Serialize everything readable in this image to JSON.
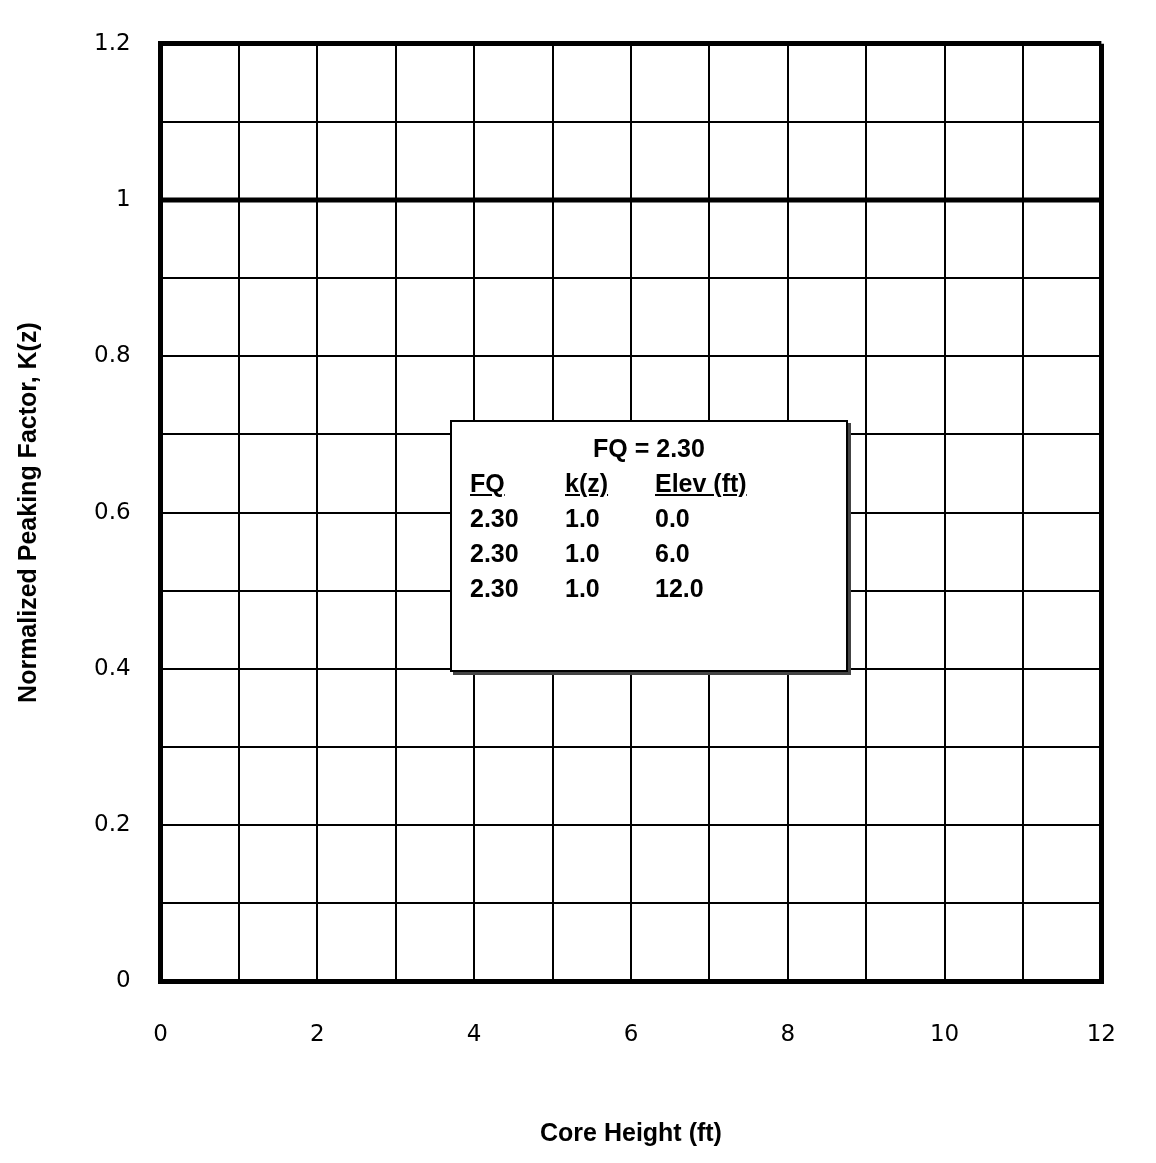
{
  "chart_data": {
    "type": "line",
    "xlabel": "Core Height (ft)",
    "ylabel": "Normalized Peaking Factor, K(z)",
    "x": [
      0,
      12
    ],
    "series": [
      {
        "color": "#000000",
        "values": [
          1,
          1
        ]
      }
    ],
    "xlim": [
      0,
      12
    ],
    "xticks": [
      0,
      {
        "value": 1,
        "label": null
      },
      2,
      {
        "value": 3,
        "label": null
      },
      4,
      {
        "value": 5,
        "label": null
      },
      6,
      {
        "value": 7,
        "label": null
      },
      8,
      {
        "value": 9,
        "label": null
      },
      10,
      {
        "value": 11,
        "label": null
      },
      12
    ],
    "ylim": [
      0,
      1.2
    ],
    "yticks": [
      0,
      {
        "value": 0.1,
        "label": null
      },
      0.2,
      {
        "value": 0.3,
        "label": null
      },
      0.4,
      {
        "value": 0.5,
        "label": null
      },
      0.6,
      {
        "value": 0.7,
        "label": null
      },
      0.8,
      {
        "value": 0.9,
        "label": null
      },
      1,
      {
        "value": 1.1,
        "label": null
      },
      1.2
    ],
    "grid": true,
    "legend": false,
    "marker": "none",
    "line_style": "solid",
    "annotations": [
      "FQ = 2.30",
      "FQ",
      "k(z)",
      "Elev (ft)",
      "2.30",
      "1.0",
      "0.0",
      "2.30",
      "1.0",
      "6.0",
      "2.30",
      "1.0",
      "12.0"
    ]
  }
}
